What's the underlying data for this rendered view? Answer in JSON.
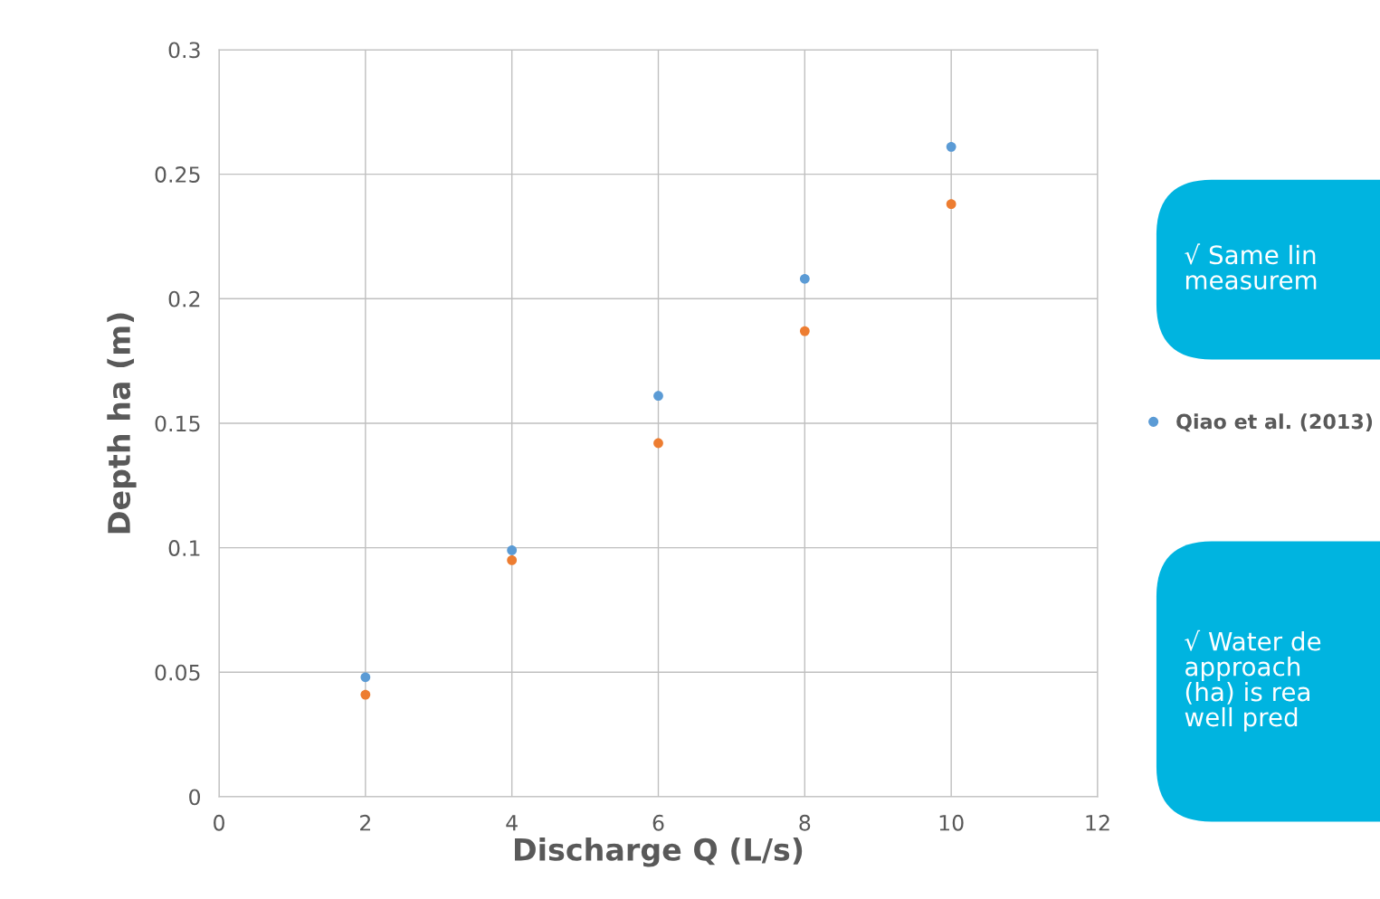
{
  "chart_data": {
    "type": "scatter",
    "xlabel": "Discharge Q (L/s)",
    "ylabel": "Depth ha (m)",
    "x": [
      2,
      4,
      6,
      8,
      10
    ],
    "series": [
      {
        "name": "Qiao et al. (2013)",
        "color": "#5b9bd5",
        "values": [
          0.048,
          0.099,
          0.161,
          0.208,
          0.261
        ]
      },
      {
        "color": "#ed7d31",
        "values": [
          0.041,
          0.095,
          0.142,
          0.187,
          0.238
        ]
      }
    ],
    "xlim": [
      0,
      12
    ],
    "xticks": [
      0,
      2,
      4,
      6,
      8,
      10,
      12
    ],
    "ylim": [
      0,
      0.3
    ],
    "yticks": [
      0,
      0.05,
      0.1,
      0.15,
      0.2,
      0.25,
      0.3
    ],
    "grid": true,
    "legend": "right",
    "marker": "circle",
    "annotations": [
      "√ Same lin\nmeasurem",
      "√ Water de\napproach\n(ha) is rea\nwell pred"
    ]
  }
}
